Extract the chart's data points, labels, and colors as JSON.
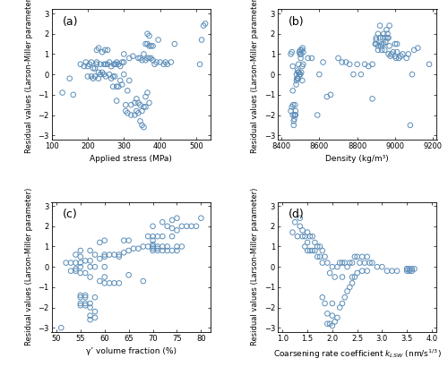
{
  "marker_color": "#5b8db8",
  "marker_size": 4,
  "marker_linewidth": 0.7,
  "ylim": [
    -3.2,
    3.2
  ],
  "yticks": [
    -3,
    -2,
    -1,
    0,
    1,
    2,
    3
  ],
  "ylabel": "Residual values (Larson-Miller parameter)",
  "figsize": [
    5.0,
    4.19
  ],
  "dpi": 100,
  "panel_a": {
    "xlabel": "Applied stress (MPa)",
    "xlim": [
      100,
      540
    ],
    "xticks": [
      100,
      200,
      300,
      400,
      500
    ],
    "label": "(a)",
    "x": [
      130,
      150,
      160,
      180,
      190,
      195,
      200,
      200,
      205,
      210,
      210,
      215,
      215,
      220,
      220,
      225,
      225,
      225,
      230,
      230,
      230,
      235,
      235,
      240,
      240,
      245,
      245,
      248,
      250,
      250,
      255,
      255,
      260,
      260,
      265,
      265,
      270,
      270,
      272,
      275,
      275,
      278,
      280,
      280,
      280,
      285,
      285,
      290,
      290,
      295,
      295,
      300,
      300,
      300,
      305,
      305,
      310,
      310,
      315,
      315,
      320,
      320,
      325,
      330,
      330,
      335,
      335,
      340,
      340,
      340,
      345,
      345,
      345,
      350,
      350,
      350,
      355,
      355,
      355,
      360,
      360,
      360,
      360,
      365,
      365,
      365,
      365,
      370,
      370,
      370,
      370,
      375,
      375,
      380,
      380,
      385,
      390,
      395,
      400,
      410,
      415,
      420,
      430,
      440,
      510,
      515,
      520,
      525
    ],
    "y": [
      -0.9,
      -0.2,
      -1.0,
      0.5,
      0.4,
      0.6,
      -0.1,
      0.4,
      0.5,
      -0.1,
      0.6,
      -0.2,
      0.3,
      -0.1,
      0.3,
      0.5,
      0.6,
      1.2,
      -0.2,
      0.1,
      1.3,
      0.0,
      0.5,
      0.1,
      1.1,
      0.0,
      0.5,
      1.2,
      -0.1,
      0.5,
      0.5,
      1.2,
      0.0,
      0.6,
      -0.2,
      0.4,
      -0.6,
      -0.1,
      0.5,
      -0.1,
      0.5,
      0.5,
      -1.3,
      -0.6,
      0.6,
      -0.6,
      0.5,
      -0.3,
      0.4,
      -0.5,
      0.6,
      0.0,
      0.6,
      1.0,
      -1.8,
      -1.5,
      -1.9,
      -0.8,
      -0.3,
      0.8,
      -2.0,
      -1.5,
      0.9,
      -2.0,
      -1.4,
      -1.8,
      -1.2,
      -1.9,
      -1.4,
      0.8,
      -2.3,
      -1.5,
      0.8,
      -2.5,
      -1.8,
      0.7,
      -2.6,
      -1.6,
      1.0,
      -1.6,
      -1.1,
      0.7,
      1.5,
      -0.9,
      0.8,
      1.5,
      2.0,
      -1.4,
      0.8,
      1.4,
      1.9,
      0.8,
      1.4,
      0.7,
      1.4,
      0.5,
      0.6,
      1.7,
      0.6,
      0.5,
      0.6,
      0.5,
      0.6,
      1.5,
      0.5,
      1.7,
      2.4,
      2.5
    ]
  },
  "panel_b": {
    "xlabel": "Density (kg/m³)",
    "xlim": [
      8380,
      9220
    ],
    "xticks": [
      8400,
      8600,
      8800,
      9000,
      9200
    ],
    "label": "(b)",
    "x": [
      8450,
      8450,
      8455,
      8455,
      8460,
      8460,
      8460,
      8462,
      8465,
      8465,
      8468,
      8470,
      8470,
      8472,
      8475,
      8475,
      8478,
      8480,
      8480,
      8482,
      8485,
      8485,
      8488,
      8490,
      8490,
      8492,
      8495,
      8495,
      8498,
      8500,
      8500,
      8502,
      8505,
      8505,
      8508,
      8510,
      8510,
      8512,
      8515,
      8515,
      8540,
      8560,
      8590,
      8600,
      8620,
      8640,
      8660,
      8700,
      8720,
      8740,
      8760,
      8780,
      8800,
      8820,
      8840,
      8860,
      8880,
      8880,
      8895,
      8900,
      8900,
      8900,
      8910,
      8910,
      8910,
      8920,
      8920,
      8925,
      8930,
      8930,
      8935,
      8940,
      8940,
      8945,
      8950,
      8950,
      8955,
      8960,
      8960,
      8965,
      8965,
      8970,
      8970,
      8975,
      8980,
      8990,
      9000,
      9000,
      9005,
      9010,
      9010,
      9020,
      9030,
      9040,
      9060,
      9070,
      9080,
      9090,
      9100,
      9120,
      9180
    ],
    "y": [
      1.0,
      -1.8,
      1.1,
      -1.6,
      -2.0,
      -0.8,
      0.4,
      -1.5,
      -2.3,
      -2.5,
      -2.2,
      -2.0,
      -2.0,
      -1.5,
      -1.8,
      -2.0,
      -0.5,
      -0.3,
      0.0,
      -0.2,
      -0.2,
      0.2,
      0.1,
      -0.2,
      0.5,
      0.1,
      0.0,
      1.1,
      1.0,
      0.0,
      1.2,
      0.8,
      0.1,
      1.0,
      1.2,
      -0.3,
      0.4,
      1.3,
      0.5,
      1.1,
      0.8,
      0.8,
      -2.0,
      0.0,
      0.6,
      -1.1,
      -1.0,
      0.8,
      0.6,
      0.6,
      0.5,
      0.0,
      0.5,
      0.0,
      0.5,
      0.4,
      -1.2,
      0.5,
      1.5,
      1.5,
      1.7,
      1.8,
      1.4,
      1.2,
      2.0,
      1.8,
      2.4,
      1.4,
      1.2,
      1.5,
      1.8,
      1.5,
      2.0,
      1.2,
      1.6,
      1.8,
      2.2,
      1.8,
      2.0,
      1.8,
      1.0,
      2.4,
      1.4,
      0.9,
      1.0,
      1.1,
      1.5,
      0.9,
      0.8,
      1.5,
      1.1,
      0.8,
      0.9,
      1.0,
      0.8,
      1.0,
      -2.5,
      0.0,
      1.2,
      1.3,
      0.5
    ]
  },
  "panel_c": {
    "xlabel": "γ’ volume fraction (%)",
    "xlim": [
      49,
      82
    ],
    "xticks": [
      50,
      55,
      60,
      65,
      70,
      75,
      80
    ],
    "label": "(c)",
    "x": [
      51,
      52,
      53,
      53,
      54,
      54,
      54,
      54,
      55,
      55,
      55,
      55,
      55,
      55,
      55,
      55,
      55,
      56,
      56,
      56,
      56,
      56,
      56,
      57,
      57,
      57,
      57,
      57,
      57,
      57,
      57,
      58,
      58,
      58,
      58,
      58,
      59,
      59,
      59,
      60,
      60,
      60,
      60,
      60,
      60,
      61,
      61,
      62,
      62,
      63,
      63,
      63,
      64,
      64,
      65,
      65,
      65,
      66,
      67,
      68,
      68,
      69,
      69,
      70,
      70,
      70,
      70,
      70,
      70,
      70,
      71,
      71,
      71,
      71,
      72,
      72,
      72,
      72,
      73,
      73,
      73,
      74,
      74,
      74,
      74,
      75,
      75,
      75,
      75,
      76,
      76,
      77,
      78,
      79,
      80
    ],
    "y": [
      -3.0,
      0.2,
      -0.2,
      0.2,
      -0.2,
      -0.1,
      0.2,
      0.6,
      -1.9,
      -1.8,
      -1.5,
      -1.4,
      -0.3,
      0.0,
      0.2,
      0.5,
      0.8,
      -1.9,
      -1.8,
      -1.5,
      -1.4,
      -0.3,
      0.3,
      -2.6,
      -2.4,
      -2.0,
      -1.8,
      -0.5,
      0.0,
      0.3,
      0.8,
      -2.5,
      -2.2,
      -1.5,
      0.0,
      0.6,
      -0.7,
      0.4,
      1.2,
      -0.8,
      -0.5,
      0.0,
      0.5,
      0.6,
      1.3,
      -0.8,
      0.6,
      -0.8,
      0.6,
      -0.8,
      0.5,
      0.6,
      0.7,
      1.3,
      -0.4,
      0.8,
      1.3,
      0.9,
      0.9,
      -0.7,
      1.0,
      1.0,
      1.5,
      0.8,
      0.9,
      1.0,
      1.1,
      1.3,
      1.5,
      2.0,
      0.8,
      0.9,
      1.0,
      1.5,
      0.8,
      1.0,
      1.5,
      2.2,
      0.8,
      1.0,
      2.0,
      0.8,
      1.5,
      1.9,
      2.3,
      0.8,
      1.0,
      1.8,
      2.4,
      1.0,
      2.0,
      2.0,
      2.0,
      2.0,
      2.4
    ]
  },
  "panel_d": {
    "xlabel": "Coarsening rate coefficient $k_{LSW}$ (nm/s$^{1/3}$)",
    "xlim": [
      0.9,
      4.1
    ],
    "xticks": [
      1.0,
      1.5,
      2.0,
      2.5,
      3.0,
      3.5,
      4.0
    ],
    "label": "(d)",
    "x": [
      1.2,
      1.25,
      1.3,
      1.35,
      1.35,
      1.4,
      1.4,
      1.45,
      1.45,
      1.5,
      1.5,
      1.5,
      1.55,
      1.55,
      1.6,
      1.6,
      1.65,
      1.65,
      1.7,
      1.7,
      1.75,
      1.75,
      1.8,
      1.8,
      1.8,
      1.85,
      1.85,
      1.9,
      1.9,
      1.9,
      1.95,
      1.95,
      2.0,
      2.0,
      2.0,
      2.0,
      2.05,
      2.05,
      2.1,
      2.1,
      2.15,
      2.15,
      2.2,
      2.2,
      2.2,
      2.25,
      2.25,
      2.3,
      2.3,
      2.35,
      2.35,
      2.4,
      2.4,
      2.4,
      2.45,
      2.45,
      2.5,
      2.5,
      2.55,
      2.6,
      2.6,
      2.65,
      2.7,
      2.7,
      2.75,
      2.8,
      2.9,
      3.0,
      3.1,
      3.2,
      3.3,
      3.5,
      3.5,
      3.5,
      3.55,
      3.55,
      3.6,
      3.6,
      3.65
    ],
    "y": [
      1.7,
      2.2,
      1.5,
      2.0,
      2.4,
      1.5,
      1.8,
      1.0,
      1.5,
      0.8,
      1.2,
      1.7,
      0.8,
      1.5,
      0.8,
      1.5,
      0.8,
      1.2,
      0.5,
      1.0,
      0.5,
      1.0,
      -1.5,
      0.2,
      0.8,
      -1.8,
      0.5,
      -2.8,
      -2.3,
      0.2,
      -2.8,
      -0.3,
      -2.9,
      -2.4,
      -1.8,
      0.0,
      -2.7,
      -0.5,
      -2.5,
      0.0,
      -2.0,
      0.2,
      -1.8,
      -0.5,
      0.2,
      -1.5,
      0.2,
      -1.2,
      0.0,
      -1.0,
      0.2,
      -0.8,
      -0.5,
      0.2,
      -0.5,
      0.5,
      -0.3,
      0.5,
      0.2,
      -0.2,
      0.5,
      0.2,
      -0.2,
      0.5,
      0.2,
      0.2,
      0.0,
      0.0,
      -0.2,
      -0.2,
      -0.2,
      -0.1,
      -0.2,
      -0.1,
      -0.2,
      -0.1,
      -0.2,
      -0.1,
      -0.1
    ]
  }
}
